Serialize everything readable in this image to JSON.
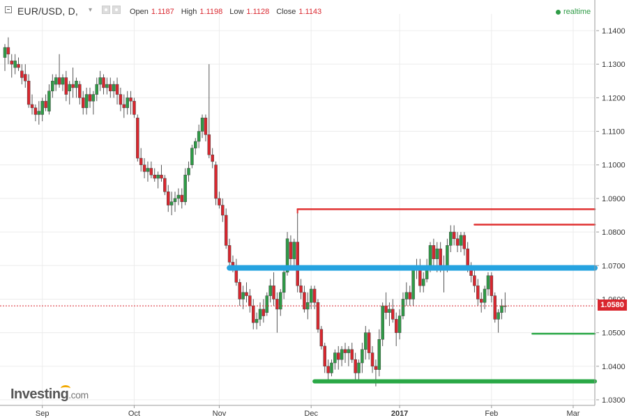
{
  "header": {
    "symbol": "EUR/USD, D,",
    "open_label": "Open",
    "open_value": "1.1187",
    "high_label": "High",
    "high_value": "1.1198",
    "low_label": "Low",
    "low_value": "1.1128",
    "close_label": "Close",
    "close_value": "1.1143",
    "realtime": "realtime"
  },
  "current_price": "1.0580",
  "logo": {
    "main": "Investing",
    "suffix": ".com"
  },
  "colors": {
    "up": "#2e9b46",
    "down": "#d9262e",
    "support": "#2aa846",
    "resistance": "#e03030",
    "pivot": "#26a3e0",
    "grid": "#ececec"
  },
  "chart_data": {
    "type": "candlestick",
    "title": "EUR/USD, D,",
    "y_ticks": [
      "1.1400",
      "1.1300",
      "1.1200",
      "1.1100",
      "1.1000",
      "1.0900",
      "1.0800",
      "1.0700",
      "1.0600",
      "1.0500",
      "1.0400",
      "1.0300"
    ],
    "ylim": [
      1.027,
      1.148
    ],
    "x_tick_labels": [
      "Sep",
      "Oct",
      "Nov",
      "Dec",
      "2017",
      "Feb",
      "Mar"
    ],
    "x_tick_index": [
      11,
      38,
      63,
      90,
      116,
      143,
      167
    ],
    "total_slots": 170,
    "candles": [
      [
        1.132,
        1.136,
        1.128,
        1.135
      ],
      [
        1.135,
        1.138,
        1.13,
        1.133
      ],
      [
        1.131,
        1.133,
        1.126,
        1.13
      ],
      [
        1.129,
        1.133,
        1.127,
        1.131
      ],
      [
        1.13,
        1.132,
        1.128,
        1.129
      ],
      [
        1.128,
        1.13,
        1.124,
        1.126
      ],
      [
        1.127,
        1.13,
        1.123,
        1.125
      ],
      [
        1.125,
        1.127,
        1.117,
        1.118
      ],
      [
        1.118,
        1.121,
        1.115,
        1.117
      ],
      [
        1.117,
        1.118,
        1.113,
        1.115
      ],
      [
        1.115,
        1.119,
        1.112,
        1.116
      ],
      [
        1.115,
        1.12,
        1.113,
        1.119
      ],
      [
        1.119,
        1.121,
        1.116,
        1.117
      ],
      [
        1.116,
        1.124,
        1.115,
        1.122
      ],
      [
        1.122,
        1.127,
        1.12,
        1.125
      ],
      [
        1.124,
        1.127,
        1.122,
        1.126
      ],
      [
        1.126,
        1.133,
        1.123,
        1.124
      ],
      [
        1.124,
        1.127,
        1.122,
        1.126
      ],
      [
        1.126,
        1.128,
        1.119,
        1.121
      ],
      [
        1.122,
        1.125,
        1.118,
        1.124
      ],
      [
        1.124,
        1.129,
        1.12,
        1.123
      ],
      [
        1.123,
        1.126,
        1.12,
        1.125
      ],
      [
        1.124,
        1.125,
        1.118,
        1.12
      ],
      [
        1.12,
        1.122,
        1.115,
        1.117
      ],
      [
        1.117,
        1.123,
        1.115,
        1.121
      ],
      [
        1.121,
        1.123,
        1.117,
        1.119
      ],
      [
        1.119,
        1.122,
        1.115,
        1.121
      ],
      [
        1.121,
        1.126,
        1.119,
        1.124
      ],
      [
        1.124,
        1.128,
        1.122,
        1.126
      ],
      [
        1.126,
        1.127,
        1.121,
        1.123
      ],
      [
        1.123,
        1.126,
        1.121,
        1.124
      ],
      [
        1.124,
        1.126,
        1.12,
        1.122
      ],
      [
        1.122,
        1.125,
        1.12,
        1.124
      ],
      [
        1.124,
        1.126,
        1.118,
        1.121
      ],
      [
        1.121,
        1.123,
        1.116,
        1.118
      ],
      [
        1.118,
        1.121,
        1.114,
        1.117
      ],
      [
        1.117,
        1.122,
        1.115,
        1.12
      ],
      [
        1.12,
        1.122,
        1.115,
        1.119
      ],
      [
        1.119,
        1.12,
        1.114,
        1.115
      ],
      [
        1.114,
        1.115,
        1.101,
        1.102
      ],
      [
        1.102,
        1.105,
        1.098,
        1.1
      ],
      [
        1.1,
        1.102,
        1.096,
        1.098
      ],
      [
        1.098,
        1.101,
        1.095,
        1.099
      ],
      [
        1.099,
        1.101,
        1.096,
        1.097
      ],
      [
        1.097,
        1.099,
        1.095,
        1.096
      ],
      [
        1.096,
        1.098,
        1.093,
        1.097
      ],
      [
        1.097,
        1.1,
        1.095,
        1.096
      ],
      [
        1.096,
        1.097,
        1.091,
        1.092
      ],
      [
        1.092,
        1.094,
        1.086,
        1.088
      ],
      [
        1.088,
        1.092,
        1.085,
        1.089
      ],
      [
        1.089,
        1.092,
        1.086,
        1.09
      ],
      [
        1.09,
        1.093,
        1.088,
        1.091
      ],
      [
        1.091,
        1.093,
        1.087,
        1.089
      ],
      [
        1.089,
        1.099,
        1.088,
        1.097
      ],
      [
        1.097,
        1.101,
        1.095,
        1.099
      ],
      [
        1.1,
        1.106,
        1.099,
        1.105
      ],
      [
        1.105,
        1.108,
        1.103,
        1.107
      ],
      [
        1.107,
        1.112,
        1.105,
        1.11
      ],
      [
        1.11,
        1.115,
        1.108,
        1.114
      ],
      [
        1.114,
        1.115,
        1.107,
        1.109
      ],
      [
        1.109,
        1.13,
        1.102,
        1.103
      ],
      [
        1.103,
        1.105,
        1.099,
        1.101
      ],
      [
        1.1,
        1.101,
        1.088,
        1.09
      ],
      [
        1.09,
        1.092,
        1.087,
        1.088
      ],
      [
        1.088,
        1.09,
        1.083,
        1.085
      ],
      [
        1.085,
        1.087,
        1.075,
        1.076
      ],
      [
        1.076,
        1.078,
        1.07,
        1.071
      ],
      [
        1.071,
        1.073,
        1.068,
        1.07
      ],
      [
        1.07,
        1.072,
        1.064,
        1.065
      ],
      [
        1.065,
        1.066,
        1.058,
        1.06
      ],
      [
        1.06,
        1.064,
        1.057,
        1.062
      ],
      [
        1.062,
        1.065,
        1.059,
        1.061
      ],
      [
        1.061,
        1.063,
        1.056,
        1.058
      ],
      [
        1.058,
        1.06,
        1.051,
        1.053
      ],
      [
        1.053,
        1.056,
        1.051,
        1.054
      ],
      [
        1.054,
        1.059,
        1.052,
        1.057
      ],
      [
        1.057,
        1.06,
        1.053,
        1.055
      ],
      [
        1.056,
        1.062,
        1.055,
        1.061
      ],
      [
        1.061,
        1.066,
        1.059,
        1.064
      ],
      [
        1.064,
        1.068,
        1.058,
        1.06
      ],
      [
        1.06,
        1.062,
        1.05,
        1.057
      ],
      [
        1.057,
        1.063,
        1.055,
        1.062
      ],
      [
        1.062,
        1.07,
        1.06,
        1.068
      ],
      [
        1.068,
        1.08,
        1.067,
        1.078
      ],
      [
        1.077,
        1.079,
        1.07,
        1.072
      ],
      [
        1.072,
        1.078,
        1.07,
        1.077
      ],
      [
        1.077,
        1.087,
        1.062,
        1.064
      ],
      [
        1.064,
        1.066,
        1.06,
        1.062
      ],
      [
        1.062,
        1.064,
        1.056,
        1.057
      ],
      [
        1.057,
        1.062,
        1.054,
        1.059
      ],
      [
        1.059,
        1.064,
        1.057,
        1.063
      ],
      [
        1.063,
        1.064,
        1.057,
        1.059
      ],
      [
        1.059,
        1.06,
        1.05,
        1.051
      ],
      [
        1.051,
        1.052,
        1.045,
        1.046
      ],
      [
        1.046,
        1.047,
        1.038,
        1.04
      ],
      [
        1.04,
        1.042,
        1.036,
        1.038
      ],
      [
        1.038,
        1.042,
        1.037,
        1.041
      ],
      [
        1.041,
        1.045,
        1.039,
        1.044
      ],
      [
        1.044,
        1.046,
        1.039,
        1.042
      ],
      [
        1.042,
        1.046,
        1.04,
        1.045
      ],
      [
        1.045,
        1.047,
        1.041,
        1.044
      ],
      [
        1.044,
        1.046,
        1.04,
        1.045
      ],
      [
        1.045,
        1.047,
        1.041,
        1.042
      ],
      [
        1.042,
        1.044,
        1.036,
        1.038
      ],
      [
        1.038,
        1.042,
        1.035,
        1.041
      ],
      [
        1.041,
        1.047,
        1.038,
        1.045
      ],
      [
        1.045,
        1.052,
        1.042,
        1.05
      ],
      [
        1.05,
        1.051,
        1.042,
        1.044
      ],
      [
        1.044,
        1.046,
        1.038,
        1.04
      ],
      [
        1.04,
        1.042,
        1.034,
        1.039
      ],
      [
        1.039,
        1.051,
        1.037,
        1.048
      ],
      [
        1.048,
        1.059,
        1.046,
        1.058
      ],
      [
        1.058,
        1.062,
        1.054,
        1.056
      ],
      [
        1.056,
        1.059,
        1.052,
        1.057
      ],
      [
        1.057,
        1.06,
        1.053,
        1.054
      ],
      [
        1.054,
        1.056,
        1.046,
        1.05
      ],
      [
        1.05,
        1.057,
        1.048,
        1.055
      ],
      [
        1.055,
        1.062,
        1.054,
        1.06
      ],
      [
        1.06,
        1.065,
        1.058,
        1.062
      ],
      [
        1.062,
        1.064,
        1.058,
        1.06
      ],
      [
        1.06,
        1.07,
        1.058,
        1.069
      ],
      [
        1.069,
        1.072,
        1.066,
        1.07
      ],
      [
        1.07,
        1.072,
        1.062,
        1.064
      ],
      [
        1.064,
        1.068,
        1.062,
        1.066
      ],
      [
        1.066,
        1.072,
        1.065,
        1.07
      ],
      [
        1.07,
        1.077,
        1.068,
        1.076
      ],
      [
        1.076,
        1.078,
        1.07,
        1.072
      ],
      [
        1.072,
        1.077,
        1.068,
        1.075
      ],
      [
        1.075,
        1.077,
        1.068,
        1.07
      ],
      [
        1.07,
        1.073,
        1.062,
        1.07
      ],
      [
        1.07,
        1.078,
        1.068,
        1.076
      ],
      [
        1.076,
        1.082,
        1.074,
        1.08
      ],
      [
        1.08,
        1.082,
        1.076,
        1.078
      ],
      [
        1.078,
        1.08,
        1.074,
        1.076
      ],
      [
        1.076,
        1.08,
        1.074,
        1.079
      ],
      [
        1.079,
        1.08,
        1.073,
        1.075
      ],
      [
        1.075,
        1.077,
        1.068,
        1.069
      ],
      [
        1.069,
        1.071,
        1.065,
        1.067
      ],
      [
        1.067,
        1.069,
        1.062,
        1.064
      ],
      [
        1.064,
        1.066,
        1.058,
        1.06
      ],
      [
        1.06,
        1.062,
        1.056,
        1.059
      ],
      [
        1.059,
        1.064,
        1.057,
        1.063
      ],
      [
        1.063,
        1.068,
        1.061,
        1.067
      ],
      [
        1.067,
        1.068,
        1.059,
        1.061
      ],
      [
        1.061,
        1.062,
        1.053,
        1.054
      ],
      [
        1.054,
        1.057,
        1.05,
        1.056
      ],
      [
        1.056,
        1.06,
        1.054,
        1.058
      ],
      [
        1.058,
        1.062,
        1.056,
        1.058
      ]
    ],
    "x_offset": 0,
    "levels": [
      {
        "name": "resistance-high",
        "value": 1.0868,
        "from": 86,
        "to": 170,
        "color": "#e03030"
      },
      {
        "name": "resistance-feb",
        "value": 1.0822,
        "from": 138,
        "to": 170,
        "color": "#e03030"
      },
      {
        "name": "pivot-zone",
        "value": 1.0693,
        "from": 66,
        "to": 170,
        "color": "#26a3e0"
      },
      {
        "name": "support-short",
        "value": 1.0497,
        "from": 155,
        "to": 170,
        "color": "#2aa846"
      },
      {
        "name": "support-low",
        "value": 1.0355,
        "from": 91,
        "to": 170,
        "color": "#2aa846"
      }
    ],
    "current_price": 1.058,
    "grid": true
  }
}
